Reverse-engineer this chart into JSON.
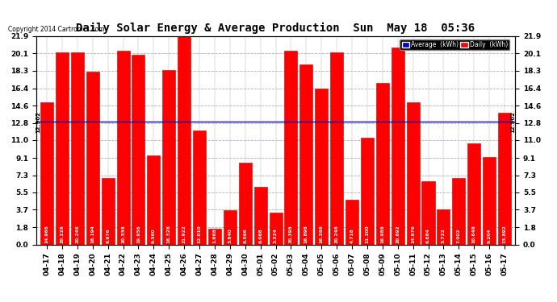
{
  "title": "Daily Solar Energy & Average Production  Sun  May 18  05:36",
  "copyright": "Copyright 2014 Cartronics.com",
  "categories": [
    "04-17",
    "04-18",
    "04-19",
    "04-20",
    "04-21",
    "04-22",
    "04-23",
    "04-24",
    "04-25",
    "04-26",
    "04-27",
    "04-28",
    "04-29",
    "04-30",
    "05-01",
    "05-02",
    "05-03",
    "05-04",
    "05-05",
    "05-06",
    "05-07",
    "05-08",
    "05-09",
    "05-10",
    "05-11",
    "05-12",
    "05-13",
    "05-14",
    "05-15",
    "05-16",
    "05-17"
  ],
  "values": [
    14.966,
    20.226,
    20.246,
    18.194,
    6.976,
    20.336,
    19.956,
    9.36,
    18.328,
    21.922,
    12.01,
    1.668,
    3.64,
    8.596,
    6.068,
    3.324,
    20.398,
    18.898,
    16.386,
    20.248,
    4.718,
    11.2,
    16.988,
    20.692,
    14.976,
    6.684,
    3.722,
    7.002,
    10.648,
    9.204,
    13.892
  ],
  "average": 12.902,
  "bar_color": "#ff0000",
  "bar_edge_color": "#bb0000",
  "average_line_color": "#0000cc",
  "background_color": "#ffffff",
  "plot_bg_color": "#ffffff",
  "grid_color": "#b0b0b0",
  "yticks": [
    0.0,
    1.8,
    3.7,
    5.5,
    7.3,
    9.1,
    11.0,
    12.8,
    14.6,
    16.4,
    18.3,
    20.1,
    21.9
  ],
  "ymax": 21.9,
  "ymin": 0.0,
  "title_fontsize": 10,
  "tick_fontsize": 6.5,
  "avg_label": "12.902",
  "legend_avg_color": "#0000cc",
  "legend_daily_color": "#ff0000",
  "value_label_fontsize": 4.2
}
